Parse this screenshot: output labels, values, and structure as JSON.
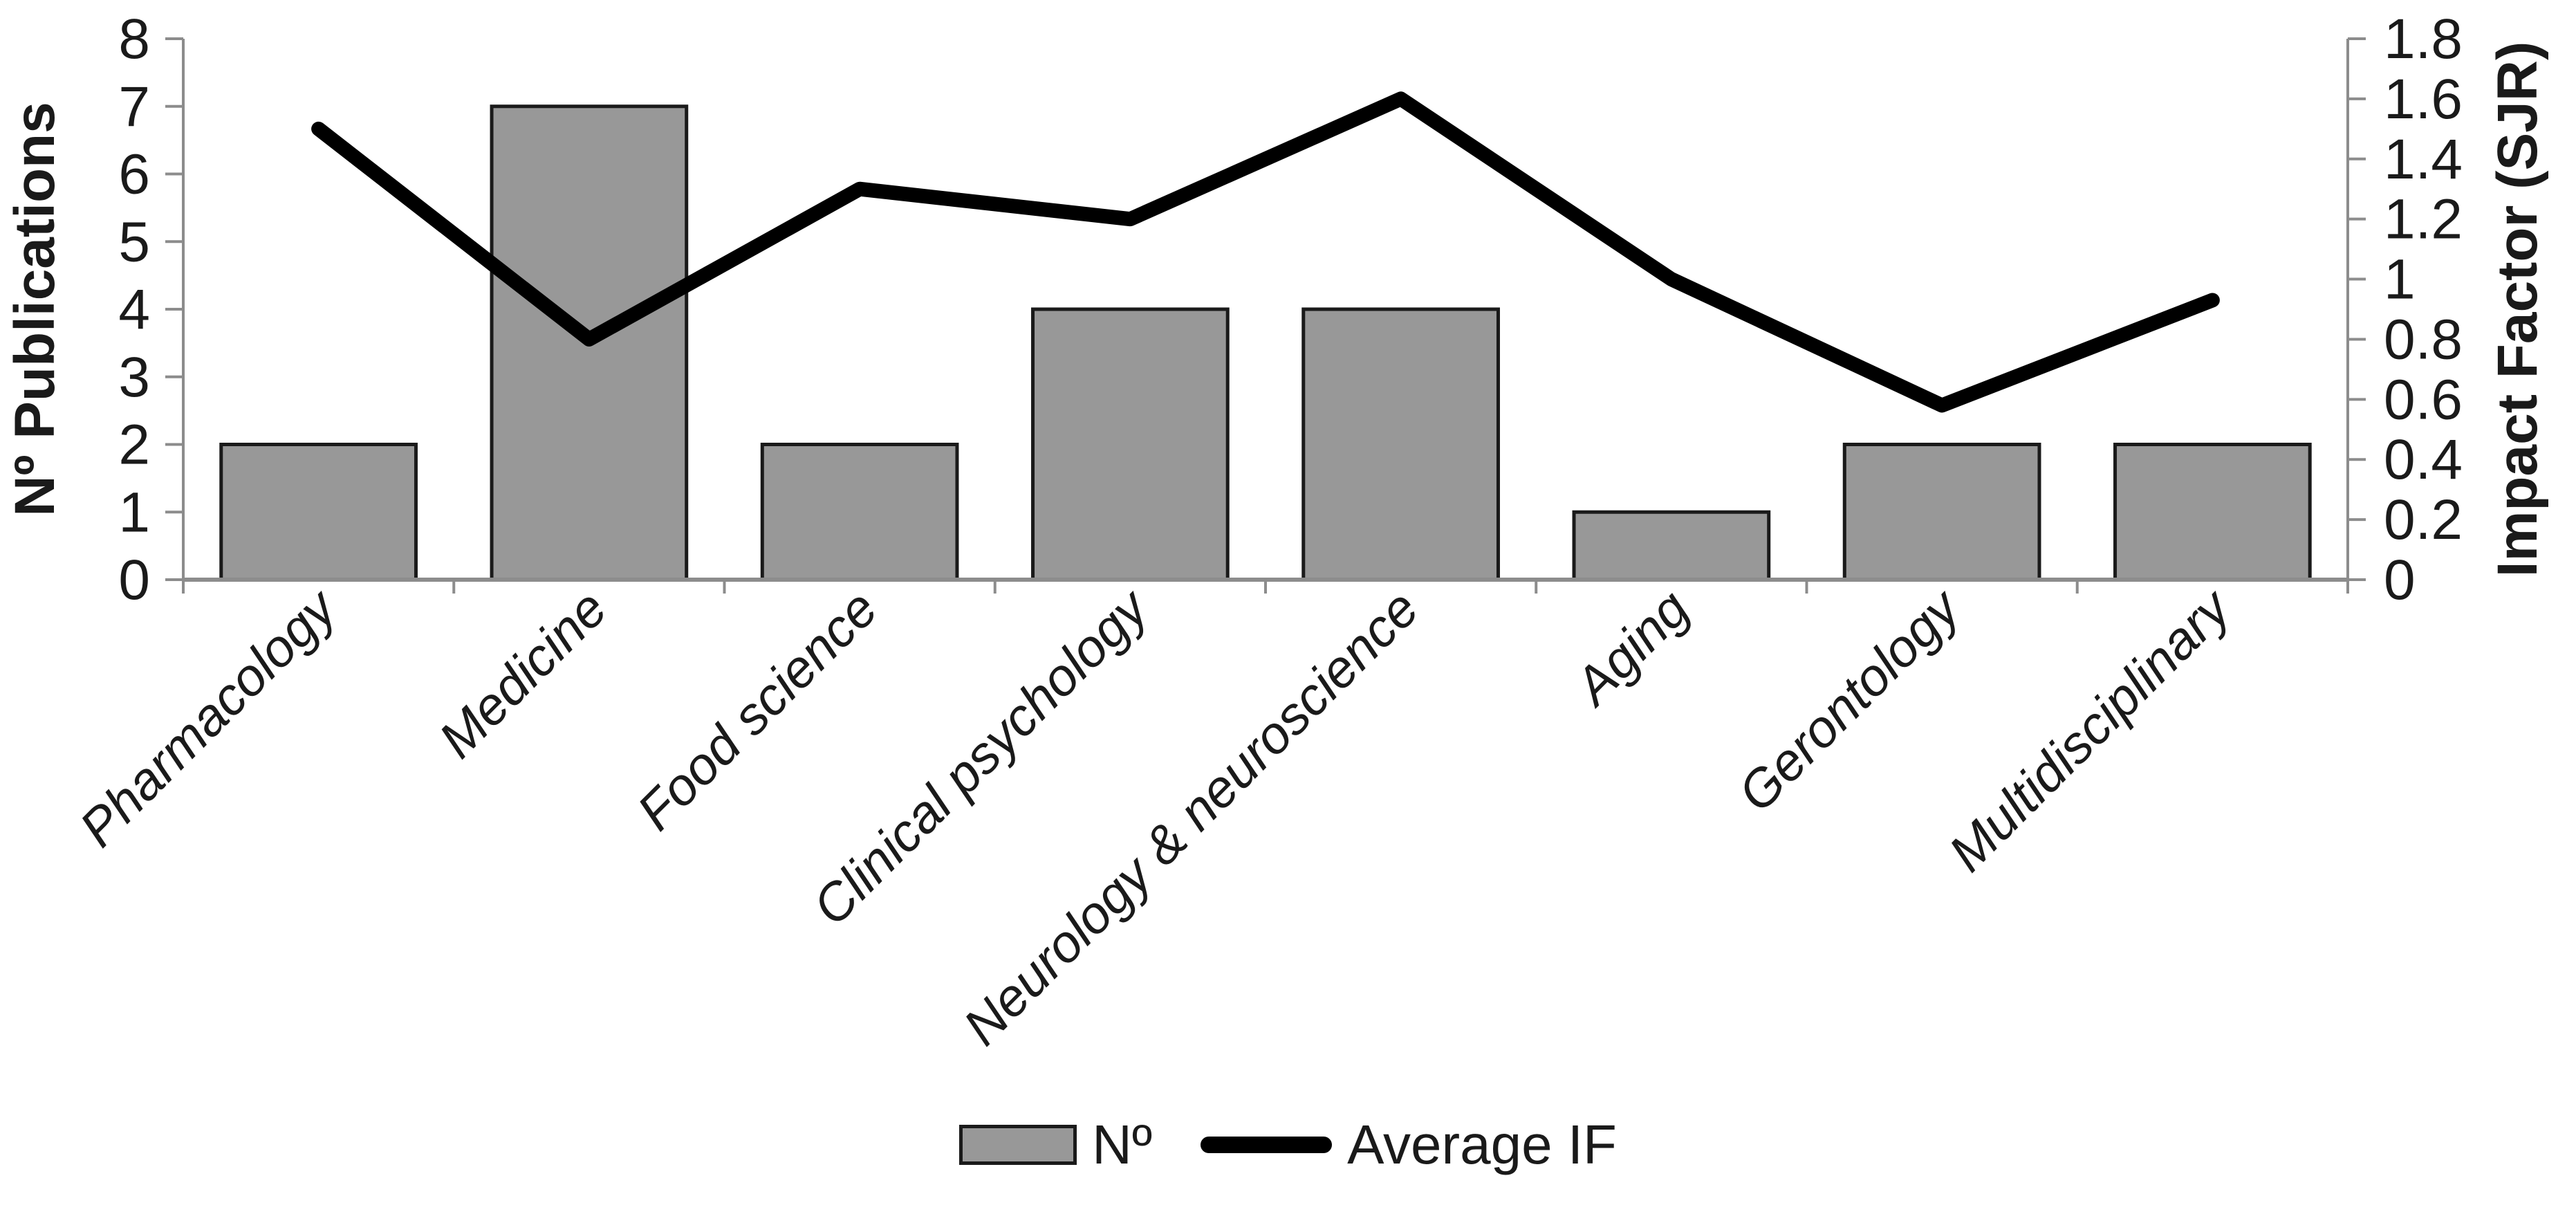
{
  "chart_data": {
    "type": "bar+line combo, dual y-axes",
    "categories": [
      "Pharmacology",
      "Medicine",
      "Food science",
      "Clinical psychology",
      "Neurology & neuroscience",
      "Aging",
      "Gerontology",
      "Multidisciplinary"
    ],
    "series": [
      {
        "name": "Nº",
        "type": "bar",
        "axis": "left",
        "values": [
          2,
          7,
          2,
          4,
          4,
          1,
          2,
          2
        ]
      },
      {
        "name": "Average IF",
        "type": "line",
        "axis": "right",
        "values": [
          1.5,
          0.8,
          1.3,
          1.2,
          1.6,
          1.0,
          0.58,
          0.93
        ]
      }
    ],
    "left_axis": {
      "title": "Nº Publications",
      "min": 0,
      "max": 8,
      "step": 1,
      "tick_labels": [
        "0",
        "1",
        "2",
        "3",
        "4",
        "5",
        "6",
        "7",
        "8"
      ]
    },
    "right_axis": {
      "title": "Impact Factor (SJR)",
      "min": 0,
      "max": 1.8,
      "step": 0.2,
      "tick_labels": [
        "0",
        "0.2",
        "0.4",
        "0.6",
        "0.8",
        "1",
        "1.2",
        "1.4",
        "1.6",
        "1.8"
      ]
    },
    "grid": false,
    "legend_position": "bottom",
    "colors": {
      "bar_fill": "#989898",
      "bar_border": "#1a1a1a",
      "line": "#000000",
      "axis": "#8c8c8c",
      "text": "#1a1a1a"
    }
  },
  "legend": {
    "bar_label": "Nº",
    "line_label": "Average IF"
  }
}
